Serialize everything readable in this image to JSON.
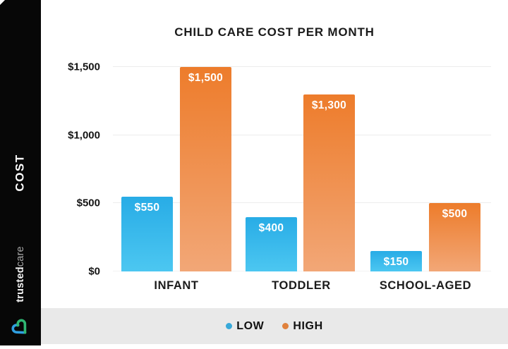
{
  "sidebar": {
    "axis_label": "COST",
    "brand": {
      "name_bold": "trusted",
      "name_light": "care"
    },
    "logo_icon": "heart-logo-icon",
    "logo_colors": {
      "blue": "#2f9fe0",
      "green": "#2fb673"
    }
  },
  "chart_data": {
    "type": "bar",
    "title": "CHILD CARE COST PER MONTH",
    "categories": [
      "INFANT",
      "TODDLER",
      "SCHOOL-AGED"
    ],
    "series": [
      {
        "name": "LOW",
        "color": "#2aade6",
        "values": [
          550,
          400,
          150
        ],
        "labels": [
          "$550",
          "$400",
          "$150"
        ]
      },
      {
        "name": "HIGH",
        "color": "#ed7c2b",
        "values": [
          1500,
          1300,
          500
        ],
        "labels": [
          "$1,500",
          "$1,300",
          "$500"
        ]
      }
    ],
    "ylabel": "COST",
    "xlabel": "",
    "ylim": [
      0,
      1500
    ],
    "y_tick_values": [
      0,
      500,
      1000,
      1500
    ],
    "y_tick_labels": [
      "$0",
      "$500",
      "$1,000",
      "$1,500"
    ],
    "grid": true,
    "legend_position": "bottom"
  },
  "legend": {
    "items": [
      {
        "label": "LOW",
        "dot_color": "#38a9d9"
      },
      {
        "label": "HIGH",
        "dot_color": "#e0813c"
      }
    ]
  },
  "colors": {
    "sidebar_bg": "#070707",
    "legend_band_bg": "#e9e9e9",
    "gridline": "#ececec",
    "low_gradient_top": "#28ace6",
    "low_gradient_bottom": "#4cc7f1",
    "high_gradient_top": "#ed7c2b",
    "high_gradient_bottom": "#f2a777"
  }
}
